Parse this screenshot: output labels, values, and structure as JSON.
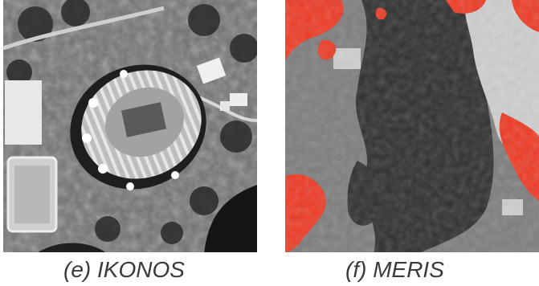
{
  "figure": {
    "panels": [
      {
        "id": "e",
        "caption": "(e) IKONOS",
        "kind": "grayscale satellite image of a stadium"
      },
      {
        "id": "f",
        "caption": "(f) MERIS",
        "kind": "classified map in red and gray levels"
      }
    ],
    "colors": {
      "class_red": "#ee3a24",
      "class_light": "#cfcfcf",
      "class_mid": "#7d7d7d",
      "class_dark": "#2f2f2f",
      "caption_text": "#3a3a3a"
    }
  }
}
